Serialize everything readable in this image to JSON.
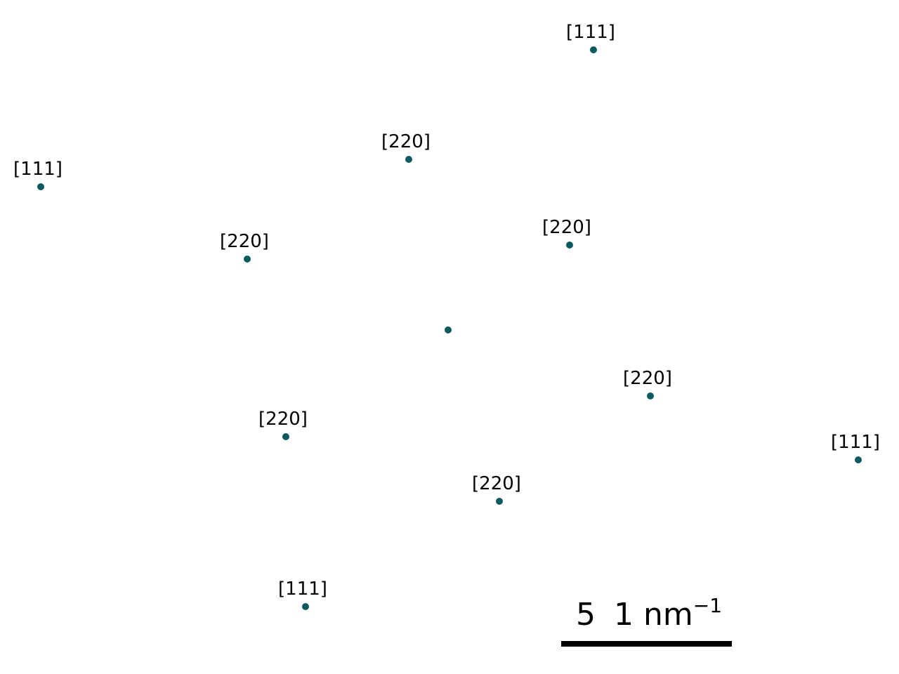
{
  "diffraction_pattern": {
    "spot_color": "#0b5a5f",
    "spots": [
      {
        "label": "[111]"
      },
      {
        "label": "[220]"
      },
      {
        "label": "[111]"
      },
      {
        "label": "[220]"
      },
      {
        "label": "[220]"
      },
      {
        "label": ""
      },
      {
        "label": "[220]"
      },
      {
        "label": "[220]"
      },
      {
        "label": "[111]"
      },
      {
        "label": "[220]"
      },
      {
        "label": "[111]"
      }
    ]
  },
  "scale_bar": {
    "value": "5",
    "unit_prefix": "1 nm",
    "unit_exponent": "−1"
  }
}
